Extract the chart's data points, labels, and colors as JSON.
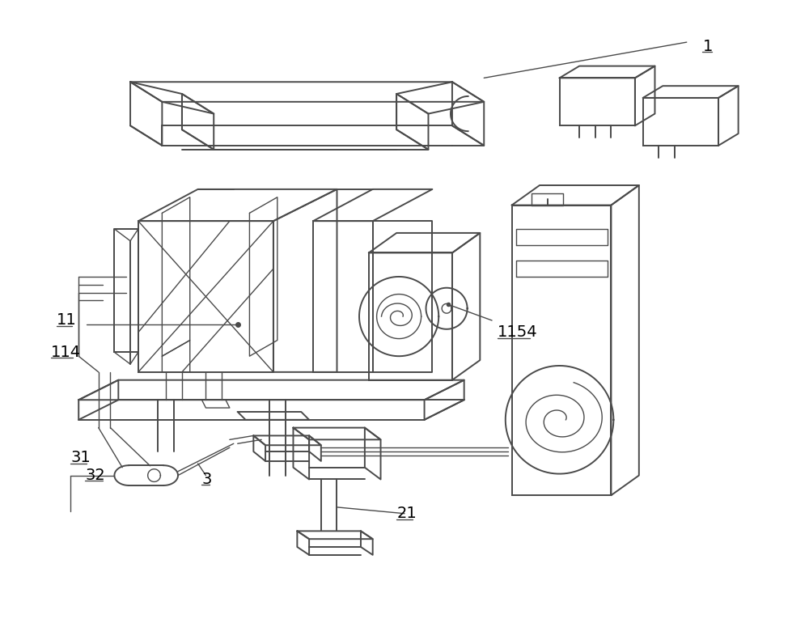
{
  "bg_color": "#ffffff",
  "line_color": "#4a4a4a",
  "lw_main": 1.4,
  "lw_thin": 1.0,
  "figsize": [
    10.0,
    7.91
  ],
  "dpi": 100
}
